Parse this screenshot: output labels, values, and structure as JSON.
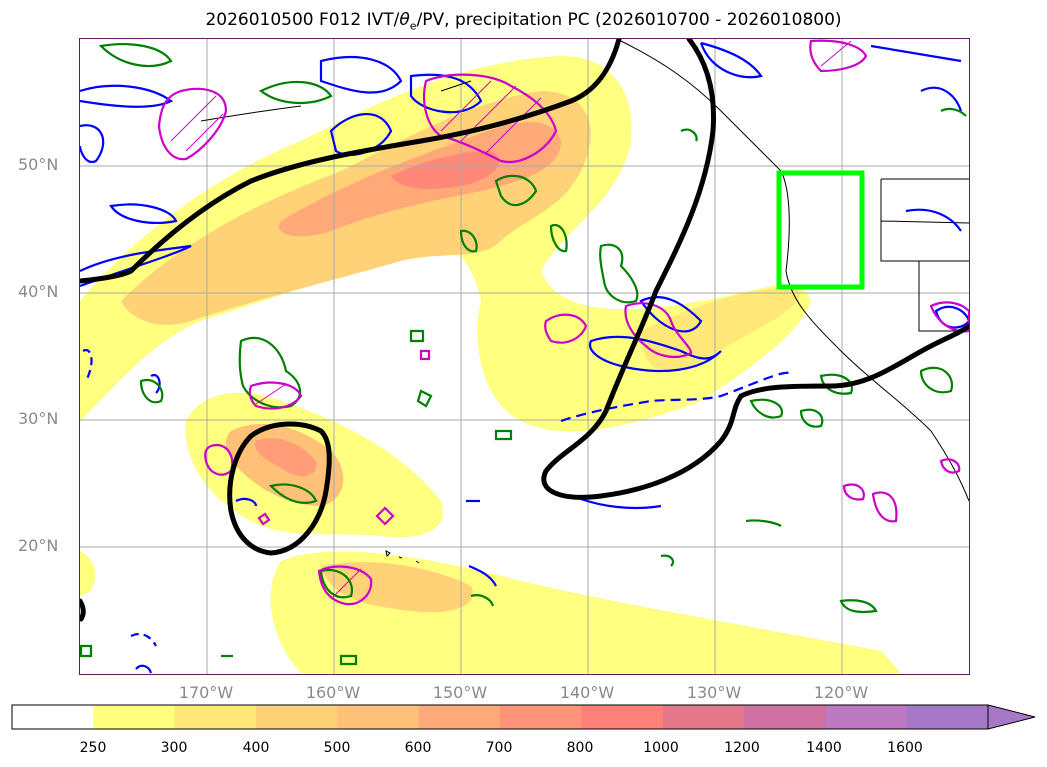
{
  "title": {
    "prefix": "2026010500 F012 IVT/",
    "theta": "θ",
    "theta_sub": "e",
    "suffix": "/PV, precipitation PC (2026010700 - 2026010800)"
  },
  "axes": {
    "lat_labels": [
      "50°N",
      "40°N",
      "30°N",
      "20°N"
    ],
    "lon_labels": [
      "170°W",
      "160°W",
      "150°W",
      "140°W",
      "130°W",
      "120°W"
    ]
  },
  "colorbar": {
    "ticks": [
      "250",
      "300",
      "400",
      "500",
      "600",
      "700",
      "800",
      "1000",
      "1200",
      "1400",
      "1600"
    ],
    "colors": [
      "#ffffff",
      "#ffff80",
      "#ffe878",
      "#ffd278",
      "#ffc078",
      "#ffa878",
      "#ff9478",
      "#ff8078",
      "#e47888",
      "#d070a0",
      "#bc78c0",
      "#a878c8"
    ]
  },
  "legend_colors": {
    "contour_thick": "#000000",
    "theta_e": "#0000ff",
    "pv": "#008000",
    "precip_pc": "#cc00cc",
    "highlight_box": "#00ff00"
  }
}
